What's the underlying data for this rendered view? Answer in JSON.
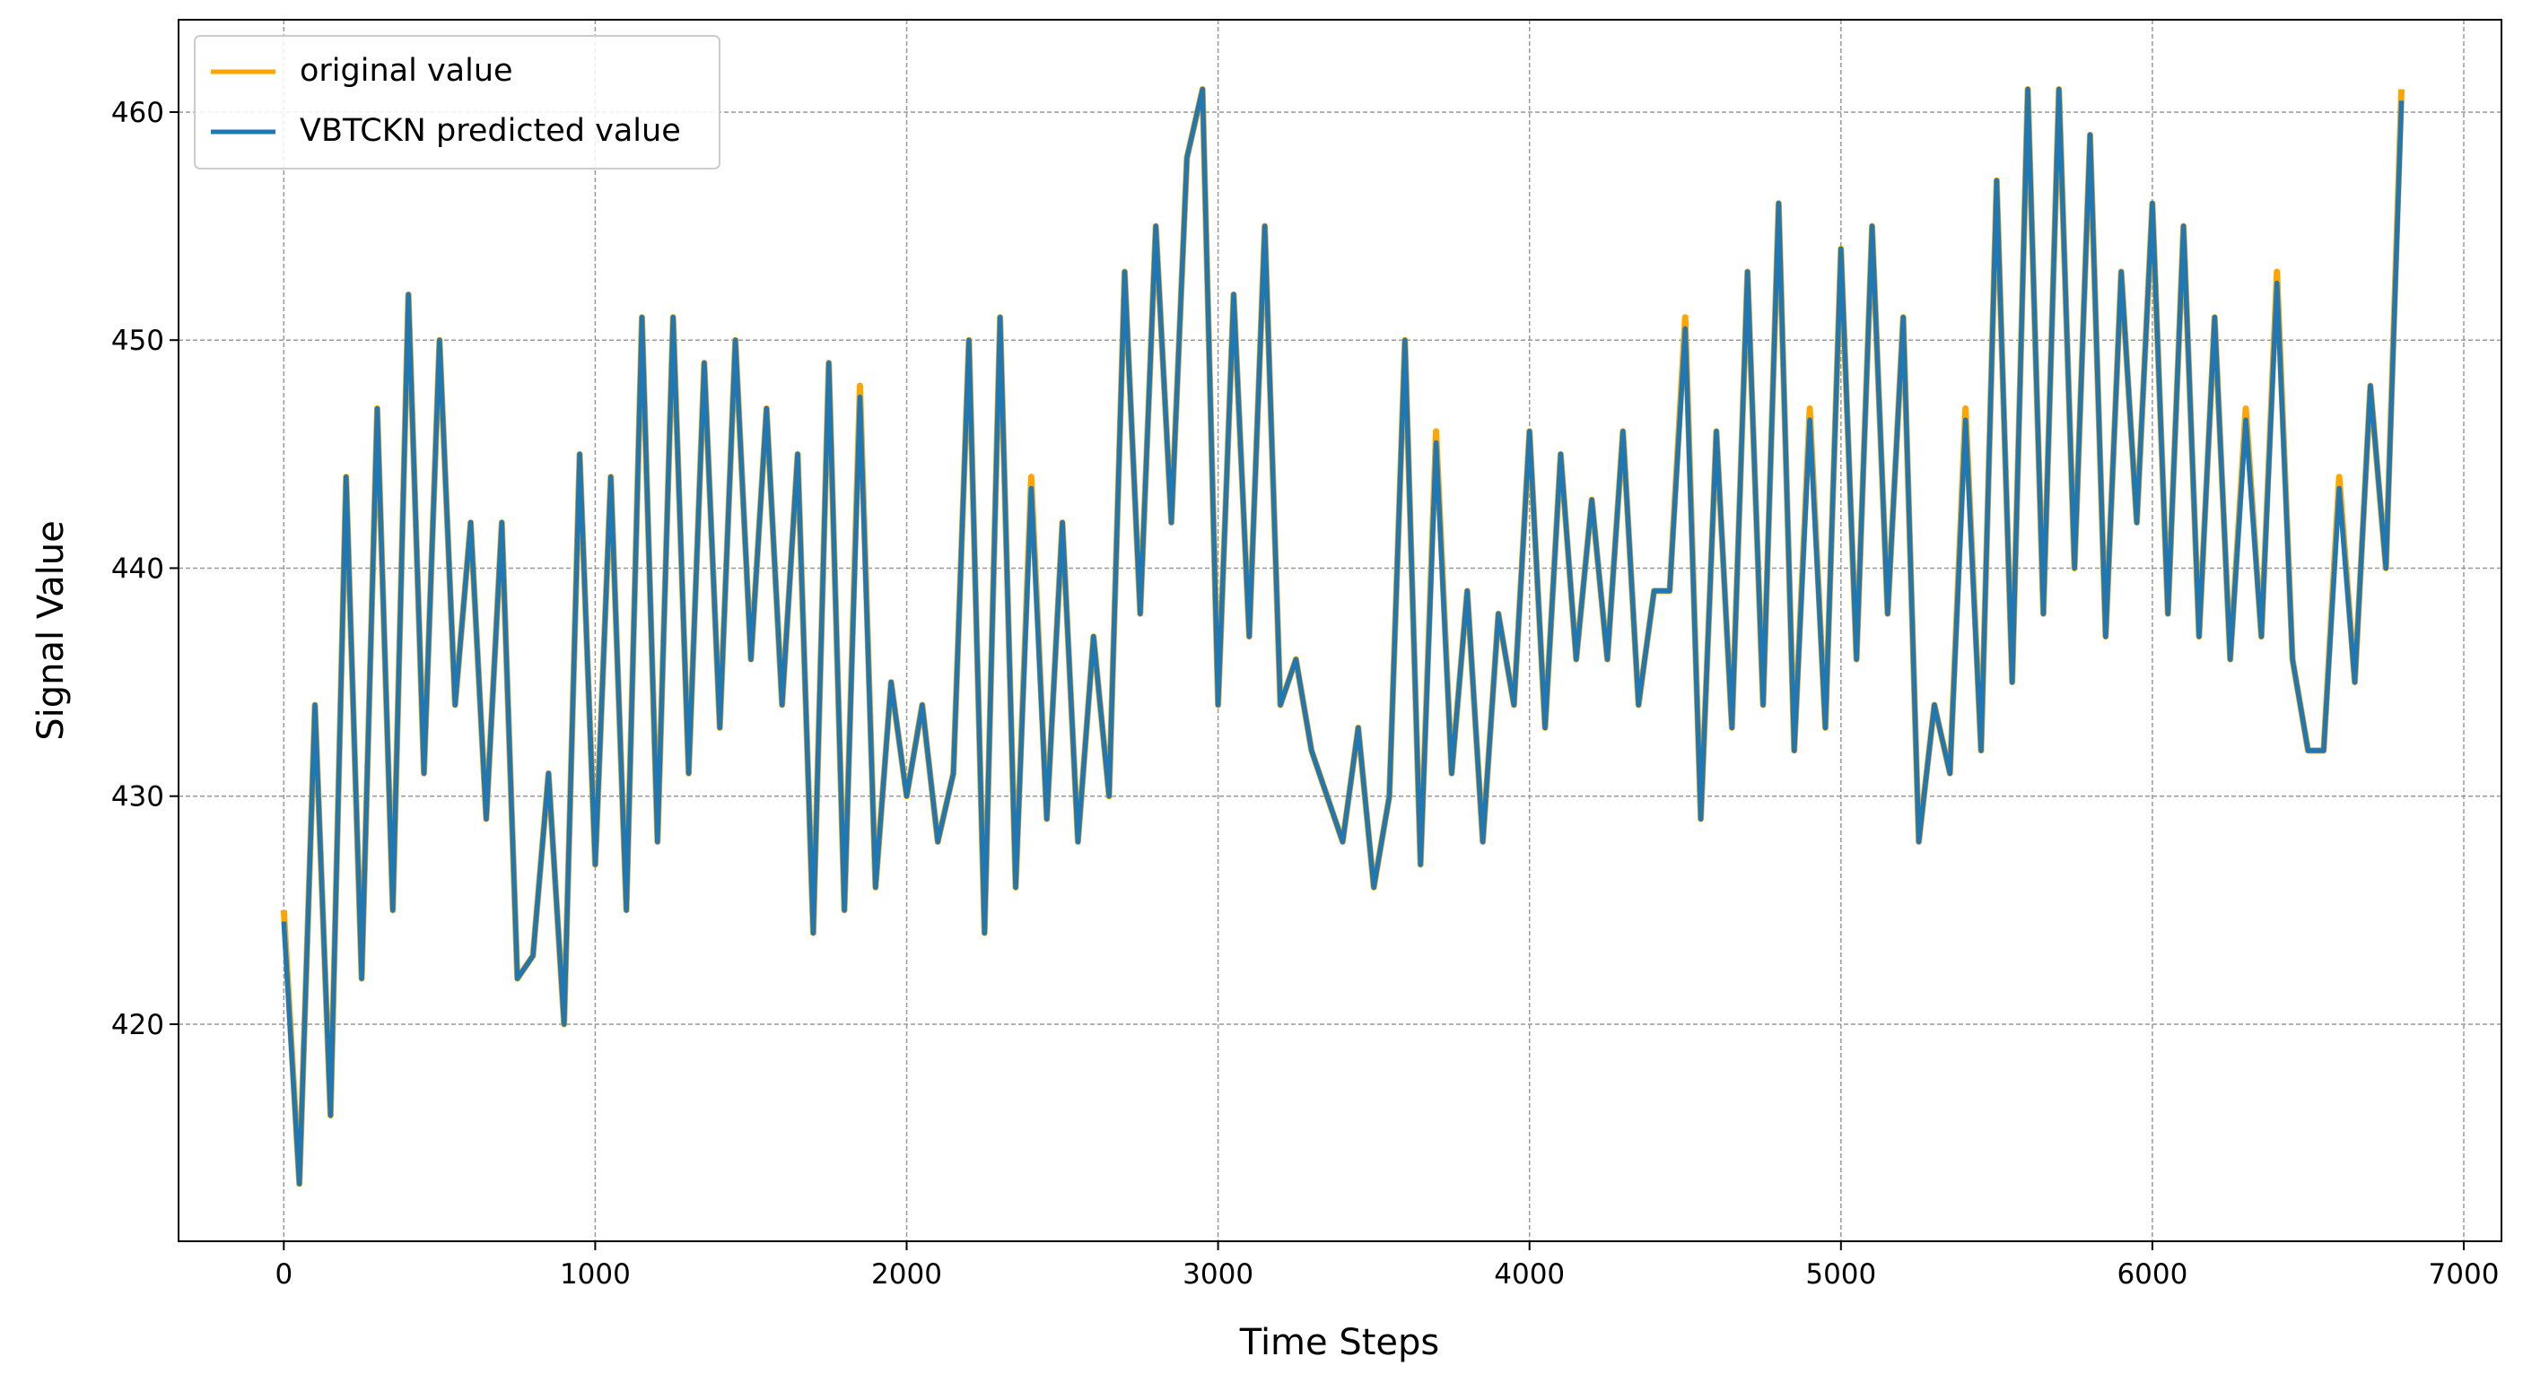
{
  "chart_data": {
    "type": "line",
    "xlabel": "Time Steps",
    "ylabel": "Signal Value",
    "x": [
      0,
      50,
      100,
      150,
      200,
      250,
      300,
      350,
      400,
      450,
      500,
      550,
      600,
      650,
      700,
      750,
      800,
      850,
      900,
      950,
      1000,
      1050,
      1100,
      1150,
      1200,
      1250,
      1300,
      1350,
      1400,
      1450,
      1500,
      1550,
      1600,
      1650,
      1700,
      1750,
      1800,
      1850,
      1900,
      1950,
      2000,
      2050,
      2100,
      2150,
      2200,
      2250,
      2300,
      2350,
      2400,
      2450,
      2500,
      2550,
      2600,
      2650,
      2700,
      2750,
      2800,
      2850,
      2900,
      2950,
      3000,
      3050,
      3100,
      3150,
      3200,
      3250,
      3300,
      3350,
      3400,
      3450,
      3500,
      3550,
      3600,
      3650,
      3700,
      3750,
      3800,
      3850,
      3900,
      3950,
      4000,
      4050,
      4100,
      4150,
      4200,
      4250,
      4300,
      4350,
      4400,
      4450,
      4500,
      4550,
      4600,
      4650,
      4700,
      4750,
      4800,
      4850,
      4900,
      4950,
      5000,
      5050,
      5100,
      5150,
      5200,
      5250,
      5300,
      5350,
      5400,
      5450,
      5500,
      5550,
      5600,
      5650,
      5700,
      5750,
      5800,
      5850,
      5900,
      5950,
      6000,
      6050,
      6100,
      6150,
      6200,
      6250,
      6300,
      6350,
      6400,
      6450,
      6500,
      6550,
      6600,
      6650,
      6700,
      6750,
      6800
    ],
    "series": [
      {
        "name": "original value",
        "color": "#ffa500",
        "values": [
          425,
          413,
          434,
          416,
          444,
          422,
          447,
          425,
          452,
          431,
          450,
          434,
          442,
          429,
          442,
          422,
          423,
          431,
          420,
          445,
          427,
          444,
          425,
          451,
          428,
          451,
          431,
          449,
          433,
          450,
          436,
          447,
          434,
          445,
          424,
          449,
          425,
          448,
          426,
          435,
          430,
          434,
          428,
          431,
          450,
          424,
          451,
          426,
          444,
          429,
          442,
          428,
          437,
          430,
          453,
          438,
          455,
          442,
          458,
          461,
          434,
          452,
          437,
          455,
          434,
          436,
          432,
          430,
          428,
          433,
          426,
          430,
          450,
          427,
          446,
          431,
          439,
          428,
          438,
          434,
          446,
          433,
          445,
          436,
          443,
          436,
          446,
          434,
          439,
          439,
          451,
          429,
          446,
          433,
          453,
          434,
          456,
          432,
          447,
          433,
          454,
          436,
          455,
          438,
          451,
          428,
          434,
          431,
          447,
          432,
          457,
          435,
          461,
          438,
          461,
          440,
          459,
          437,
          453,
          442,
          456,
          438,
          455,
          437,
          451,
          436,
          447,
          437,
          453,
          436,
          432,
          432,
          444,
          435,
          448,
          440,
          461
        ]
      },
      {
        "name": "VBTCKN predicted value",
        "color": "#1f77b4",
        "values": [
          424.5,
          413,
          434,
          416,
          444,
          422,
          447,
          425,
          452,
          431,
          450,
          434,
          442,
          429,
          442,
          422,
          423,
          431,
          420,
          445,
          427,
          444,
          425,
          451,
          428,
          451,
          431,
          449,
          433,
          450,
          436,
          447,
          434,
          445,
          424,
          449,
          425,
          447.5,
          426,
          435,
          430,
          434,
          428,
          431,
          450,
          424,
          451,
          426,
          443.5,
          429,
          442,
          428,
          437,
          430,
          453,
          438,
          455,
          442,
          458,
          461,
          434,
          452,
          437,
          455,
          434,
          436,
          432,
          430,
          428,
          433,
          426,
          430,
          450,
          427,
          445.5,
          431,
          439,
          428,
          438,
          434,
          446,
          433,
          445,
          436,
          443,
          436,
          446,
          434,
          439,
          439,
          450.5,
          429,
          446,
          433,
          453,
          434,
          456,
          432,
          446.5,
          433,
          454,
          436,
          455,
          438,
          451,
          428,
          434,
          431,
          446.5,
          432,
          457,
          435,
          461,
          438,
          461,
          440,
          459,
          437,
          453,
          442,
          456,
          438,
          455,
          437,
          451,
          436,
          446.5,
          437,
          452.5,
          436,
          432,
          432,
          443.5,
          435,
          448,
          440,
          460.5
        ]
      }
    ],
    "xlim": [
      -338,
      7121
    ],
    "xticks": [
      0,
      1000,
      2000,
      3000,
      4000,
      5000,
      6000,
      7000
    ],
    "ylim": [
      410.48,
      464.05
    ],
    "yticks": [
      420,
      430,
      440,
      450,
      460
    ],
    "grid": true,
    "legend": "upper left"
  }
}
